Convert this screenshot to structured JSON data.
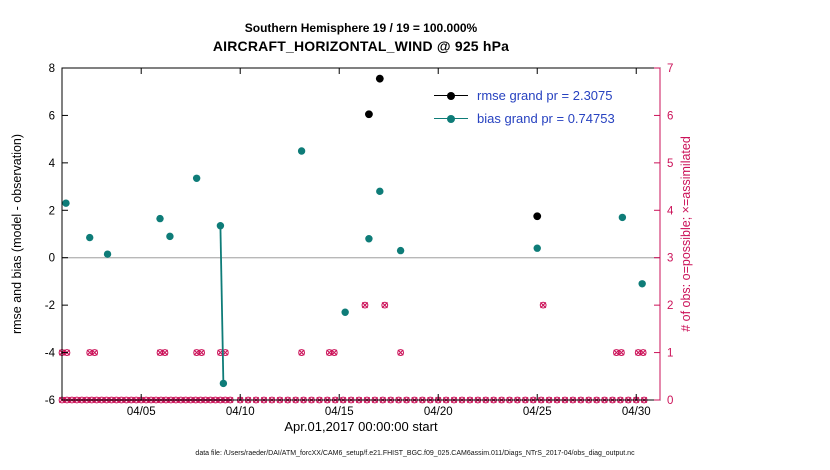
{
  "titles": {
    "line1": "Southern Hemisphere 19 / 19 = 100.000%",
    "line2": "AIRCRAFT_HORIZONTAL_WIND @ 925 hPa"
  },
  "axes": {
    "xlabel": "Apr.01,2017 00:00:00 start",
    "ylabel_left": "rmse and bias (model - observation)",
    "ylabel_right": "# of obs: o=possible; ×=assimilated"
  },
  "legend": {
    "text_color": "#2742c0",
    "items": [
      {
        "label": "rmse grand pr = 2.3075",
        "color": "#000000"
      },
      {
        "label": "bias grand pr = 0.74753",
        "color": "#0e7c78"
      }
    ]
  },
  "footer": "data file: /Users/raeder/DAI/ATM_forcXX/CAM6_setup/f.e21.FHIST_BGC.f09_025.CAM6assim.011/Diags_NTrS_2017-04/obs_diag_output.nc",
  "chart_data": {
    "type": "scatter",
    "title": "Southern Hemisphere 19 / 19 = 100.000%",
    "subtitle": "AIRCRAFT_HORIZONTAL_WIND @ 925 hPa",
    "xlabel": "Apr.01,2017 00:00:00 start",
    "x_unit": "day of April 2017",
    "xlim": [
      1,
      31.2
    ],
    "ylim_left": [
      -6,
      8
    ],
    "ylim_right": [
      0,
      7
    ],
    "grid": false,
    "left_ticks": [
      -6,
      -4,
      -2,
      0,
      2,
      4,
      6,
      8
    ],
    "right_ticks": [
      0,
      1,
      2,
      3,
      4,
      5,
      6,
      7
    ],
    "x_ticks": [
      {
        "day": 5,
        "label": "04/05"
      },
      {
        "day": 10,
        "label": "04/10"
      },
      {
        "day": 15,
        "label": "04/15"
      },
      {
        "day": 20,
        "label": "04/20"
      },
      {
        "day": 25,
        "label": "04/25"
      },
      {
        "day": 30,
        "label": "04/30"
      }
    ],
    "zero_line_y": 0,
    "colors": {
      "rmse": "#000000",
      "bias": "#0e7c78",
      "obs": "#cb1158",
      "zero_line": "#b8b8b8",
      "axis": "#000000"
    },
    "series_rmse": {
      "name": "rmse",
      "grand_pr": 2.3075,
      "axis": "left",
      "points": [
        [
          16.5,
          6.05
        ],
        [
          17.05,
          7.55
        ],
        [
          25.0,
          1.75
        ]
      ]
    },
    "series_bias": {
      "name": "bias",
      "grand_pr": 0.74753,
      "axis": "left",
      "points": [
        [
          1.2,
          2.3
        ],
        [
          2.4,
          0.85
        ],
        [
          3.3,
          0.15
        ],
        [
          5.95,
          1.65
        ],
        [
          6.45,
          0.9
        ],
        [
          7.8,
          3.35
        ],
        [
          9.0,
          1.35
        ],
        [
          9.15,
          -5.3
        ],
        [
          13.1,
          4.5
        ],
        [
          15.3,
          -2.3
        ],
        [
          16.5,
          0.8
        ],
        [
          17.05,
          2.8
        ],
        [
          18.1,
          0.3
        ],
        [
          25.0,
          0.4
        ],
        [
          29.3,
          1.7
        ],
        [
          30.3,
          -1.1
        ]
      ],
      "segments": [
        [
          [
            9.0,
            1.35
          ],
          [
            9.15,
            -5.3
          ]
        ]
      ]
    },
    "series_obs": {
      "name": "# of obs (o=possible, x=assimilated)",
      "axis": "right",
      "points": [
        [
          1,
          0
        ],
        [
          1.25,
          0
        ],
        [
          1.5,
          0
        ],
        [
          1.75,
          0
        ],
        [
          2,
          0
        ],
        [
          2.25,
          0
        ],
        [
          2.5,
          0
        ],
        [
          2.75,
          0
        ],
        [
          3,
          0
        ],
        [
          3.25,
          0
        ],
        [
          3.5,
          0
        ],
        [
          3.75,
          0
        ],
        [
          4,
          0
        ],
        [
          4.25,
          0
        ],
        [
          4.5,
          0
        ],
        [
          4.75,
          0
        ],
        [
          5,
          0
        ],
        [
          5.25,
          0
        ],
        [
          5.5,
          0
        ],
        [
          5.75,
          0
        ],
        [
          6,
          0
        ],
        [
          6.25,
          0
        ],
        [
          6.5,
          0
        ],
        [
          6.75,
          0
        ],
        [
          7,
          0
        ],
        [
          7.25,
          0
        ],
        [
          7.5,
          0
        ],
        [
          7.75,
          0
        ],
        [
          8,
          0
        ],
        [
          8.25,
          0
        ],
        [
          8.5,
          0
        ],
        [
          8.75,
          0
        ],
        [
          9,
          0
        ],
        [
          9.25,
          0
        ],
        [
          9.5,
          0
        ],
        [
          10,
          0
        ],
        [
          10.4,
          0
        ],
        [
          10.8,
          0
        ],
        [
          11.2,
          0
        ],
        [
          11.6,
          0
        ],
        [
          12,
          0
        ],
        [
          12.4,
          0
        ],
        [
          12.8,
          0
        ],
        [
          13.2,
          0
        ],
        [
          13.6,
          0
        ],
        [
          14,
          0
        ],
        [
          14.4,
          0
        ],
        [
          14.8,
          0
        ],
        [
          15.2,
          0
        ],
        [
          15.6,
          0
        ],
        [
          16,
          0
        ],
        [
          16.4,
          0
        ],
        [
          16.8,
          0
        ],
        [
          17.2,
          0
        ],
        [
          17.6,
          0
        ],
        [
          18,
          0
        ],
        [
          18.4,
          0
        ],
        [
          18.8,
          0
        ],
        [
          19.2,
          0
        ],
        [
          19.6,
          0
        ],
        [
          20,
          0
        ],
        [
          20.4,
          0
        ],
        [
          20.8,
          0
        ],
        [
          21.2,
          0
        ],
        [
          21.6,
          0
        ],
        [
          22,
          0
        ],
        [
          22.4,
          0
        ],
        [
          22.8,
          0
        ],
        [
          23.2,
          0
        ],
        [
          23.6,
          0
        ],
        [
          24,
          0
        ],
        [
          24.4,
          0
        ],
        [
          24.8,
          0
        ],
        [
          25.2,
          0
        ],
        [
          25.6,
          0
        ],
        [
          26,
          0
        ],
        [
          26.4,
          0
        ],
        [
          26.8,
          0
        ],
        [
          27.2,
          0
        ],
        [
          27.6,
          0
        ],
        [
          28,
          0
        ],
        [
          28.4,
          0
        ],
        [
          28.8,
          0
        ],
        [
          29.2,
          0
        ],
        [
          29.6,
          0
        ],
        [
          30,
          0
        ],
        [
          30.4,
          0
        ],
        [
          1,
          1
        ],
        [
          1.25,
          1
        ],
        [
          2.4,
          1
        ],
        [
          2.65,
          1
        ],
        [
          5.95,
          1
        ],
        [
          6.2,
          1
        ],
        [
          7.8,
          1
        ],
        [
          8.05,
          1
        ],
        [
          9,
          1
        ],
        [
          9.25,
          1
        ],
        [
          13.1,
          1
        ],
        [
          14.5,
          1
        ],
        [
          14.75,
          1
        ],
        [
          18.1,
          1
        ],
        [
          29,
          1
        ],
        [
          29.25,
          1
        ],
        [
          30.1,
          1
        ],
        [
          30.35,
          1
        ],
        [
          16.3,
          2
        ],
        [
          17.3,
          2
        ],
        [
          25.3,
          2
        ]
      ]
    }
  }
}
